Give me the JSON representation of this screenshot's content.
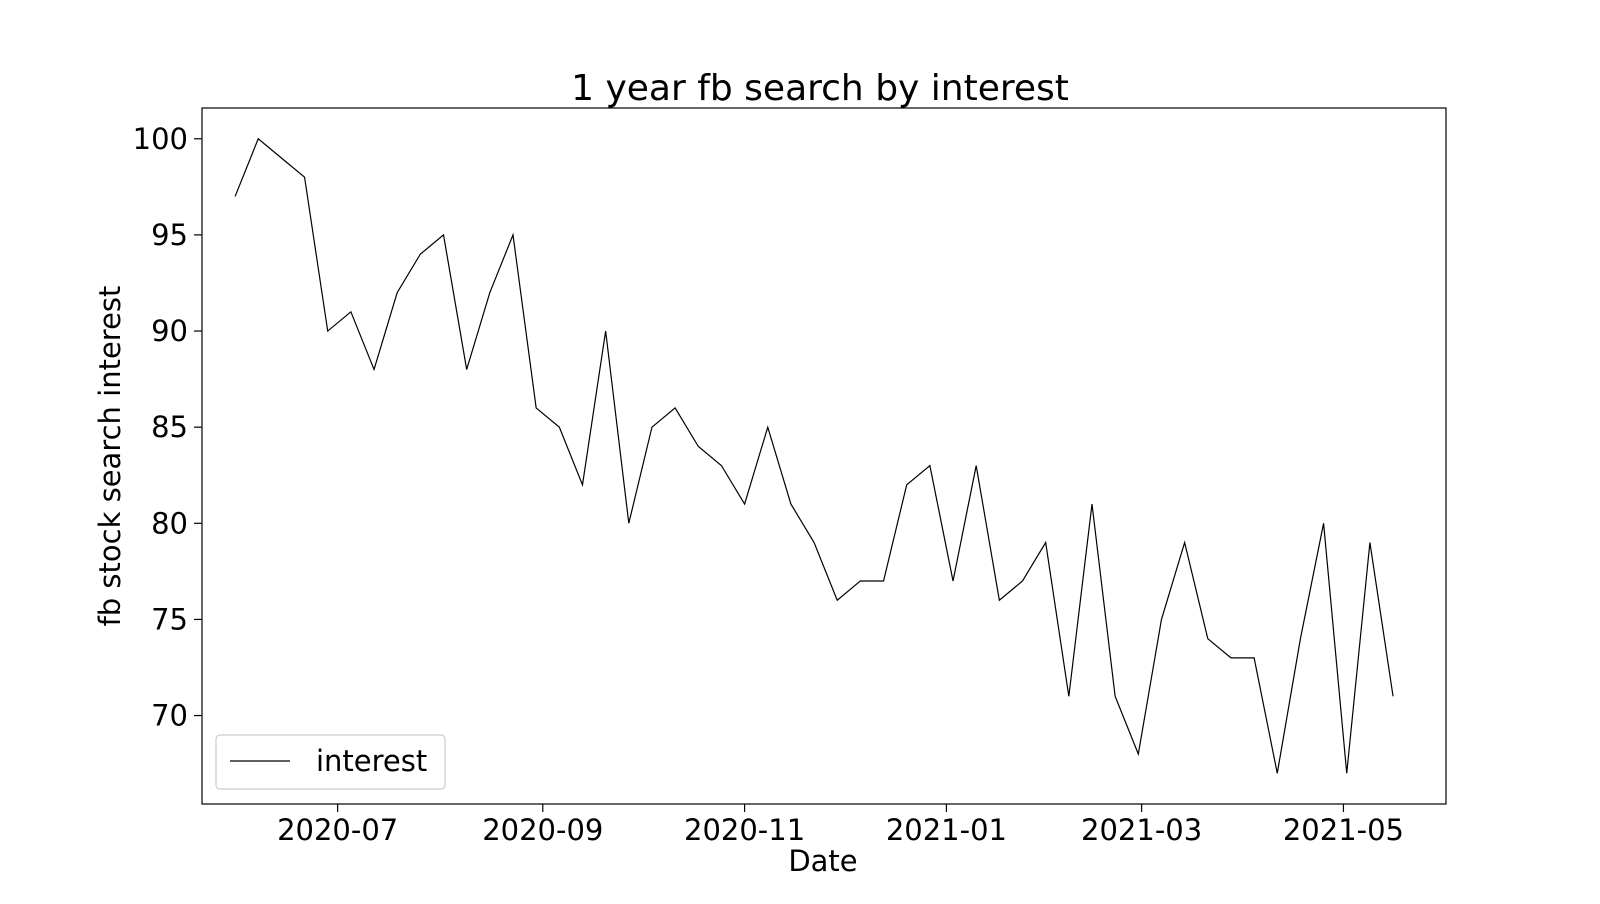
{
  "chart_data": {
    "type": "line",
    "title": "1 year fb search by interest",
    "xlabel": "Date",
    "ylabel": "fb stock search interest",
    "x_ticks": [
      "2020-07-01",
      "2020-09-01",
      "2020-11-01",
      "2021-01-01",
      "2021-03-01",
      "2021-05-01"
    ],
    "x_tick_labels": [
      "2020-07",
      "2020-09",
      "2020-11",
      "2021-01",
      "2021-03",
      "2021-05"
    ],
    "y_ticks": [
      70,
      75,
      80,
      85,
      90,
      95,
      100
    ],
    "y_tick_labels": [
      "70",
      "75",
      "80",
      "85",
      "90",
      "95",
      "100"
    ],
    "xlim": [
      "2020-05-21",
      "2021-06-01"
    ],
    "ylim": [
      65.4,
      101.6
    ],
    "grid": false,
    "legend": {
      "position": "lower-left",
      "entries": [
        "interest"
      ]
    },
    "series": [
      {
        "name": "interest",
        "color": "#000000",
        "x": [
          "2020-05-31",
          "2020-06-07",
          "2020-06-14",
          "2020-06-21",
          "2020-06-28",
          "2020-07-05",
          "2020-07-12",
          "2020-07-19",
          "2020-07-26",
          "2020-08-02",
          "2020-08-09",
          "2020-08-16",
          "2020-08-23",
          "2020-08-30",
          "2020-09-06",
          "2020-09-13",
          "2020-09-20",
          "2020-09-27",
          "2020-10-04",
          "2020-10-11",
          "2020-10-18",
          "2020-10-25",
          "2020-11-01",
          "2020-11-08",
          "2020-11-15",
          "2020-11-22",
          "2020-11-29",
          "2020-12-06",
          "2020-12-13",
          "2020-12-20",
          "2020-12-27",
          "2021-01-03",
          "2021-01-10",
          "2021-01-17",
          "2021-01-24",
          "2021-01-31",
          "2021-02-07",
          "2021-02-14",
          "2021-02-21",
          "2021-02-28",
          "2021-03-07",
          "2021-03-14",
          "2021-03-21",
          "2021-03-28",
          "2021-04-04",
          "2021-04-11",
          "2021-04-18",
          "2021-04-25",
          "2021-05-02",
          "2021-05-09",
          "2021-05-16"
        ],
        "values": [
          97,
          100,
          99,
          98,
          90,
          91,
          88,
          92,
          94,
          95,
          88,
          92,
          95,
          86,
          85,
          82,
          90,
          80,
          85,
          86,
          84,
          83,
          81,
          85,
          81,
          79,
          76,
          77,
          77,
          82,
          83,
          77,
          83,
          76,
          77,
          79,
          71,
          81,
          71,
          68,
          75,
          79,
          74,
          73,
          73,
          67,
          74,
          80,
          67,
          79,
          71
        ]
      }
    ]
  }
}
